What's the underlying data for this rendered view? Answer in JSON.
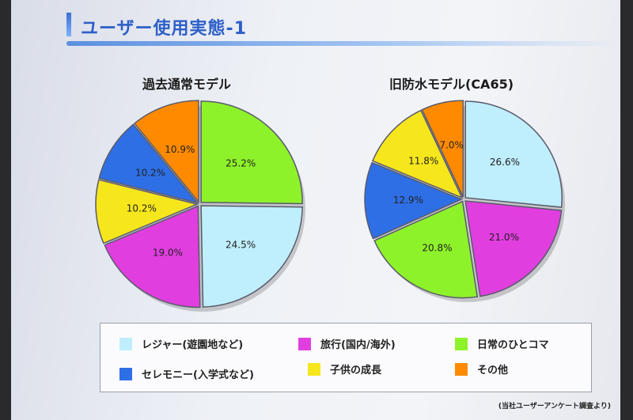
{
  "title": "ユーザー使用実態-1",
  "source_note": "(当社ユーザーアンケート調査より)",
  "colors": {
    "leisure": "#bfeefd",
    "travel": "#e13ee0",
    "daily": "#8ef22a",
    "ceremony": "#2e6fe6",
    "growth": "#f6e61c",
    "other": "#ff8a00"
  },
  "legend": [
    {
      "key": "leisure",
      "label": "レジャー(遊園地など)"
    },
    {
      "key": "travel",
      "label": "旅行(国内/海外)"
    },
    {
      "key": "daily",
      "label": "日常のひとコマ"
    },
    {
      "key": "ceremony",
      "label": "セレモニー(入学式など)"
    },
    {
      "key": "growth",
      "label": "子供の成長"
    },
    {
      "key": "other",
      "label": "その他"
    }
  ],
  "chart_data": [
    {
      "type": "pie",
      "title": "過去通常モデル",
      "slices": [
        {
          "key": "daily",
          "label": "25.2%",
          "value": 25.2
        },
        {
          "key": "leisure",
          "label": "24.5%",
          "value": 24.5
        },
        {
          "key": "travel",
          "label": "19.0%",
          "value": 19.0
        },
        {
          "key": "growth",
          "label": "10.2%",
          "value": 10.2
        },
        {
          "key": "ceremony",
          "label": "10.2%",
          "value": 10.2
        },
        {
          "key": "other",
          "label": "10.9%",
          "value": 10.9
        }
      ]
    },
    {
      "type": "pie",
      "title": "旧防水モデル(CA65)",
      "slices": [
        {
          "key": "leisure",
          "label": "26.6%",
          "value": 26.6
        },
        {
          "key": "travel",
          "label": "21.0%",
          "value": 21.0
        },
        {
          "key": "daily",
          "label": "20.8%",
          "value": 20.8
        },
        {
          "key": "ceremony",
          "label": "12.9%",
          "value": 12.9
        },
        {
          "key": "growth",
          "label": "11.8%",
          "value": 11.8
        },
        {
          "key": "other",
          "label": "7.0%",
          "value": 7.0
        }
      ]
    }
  ]
}
